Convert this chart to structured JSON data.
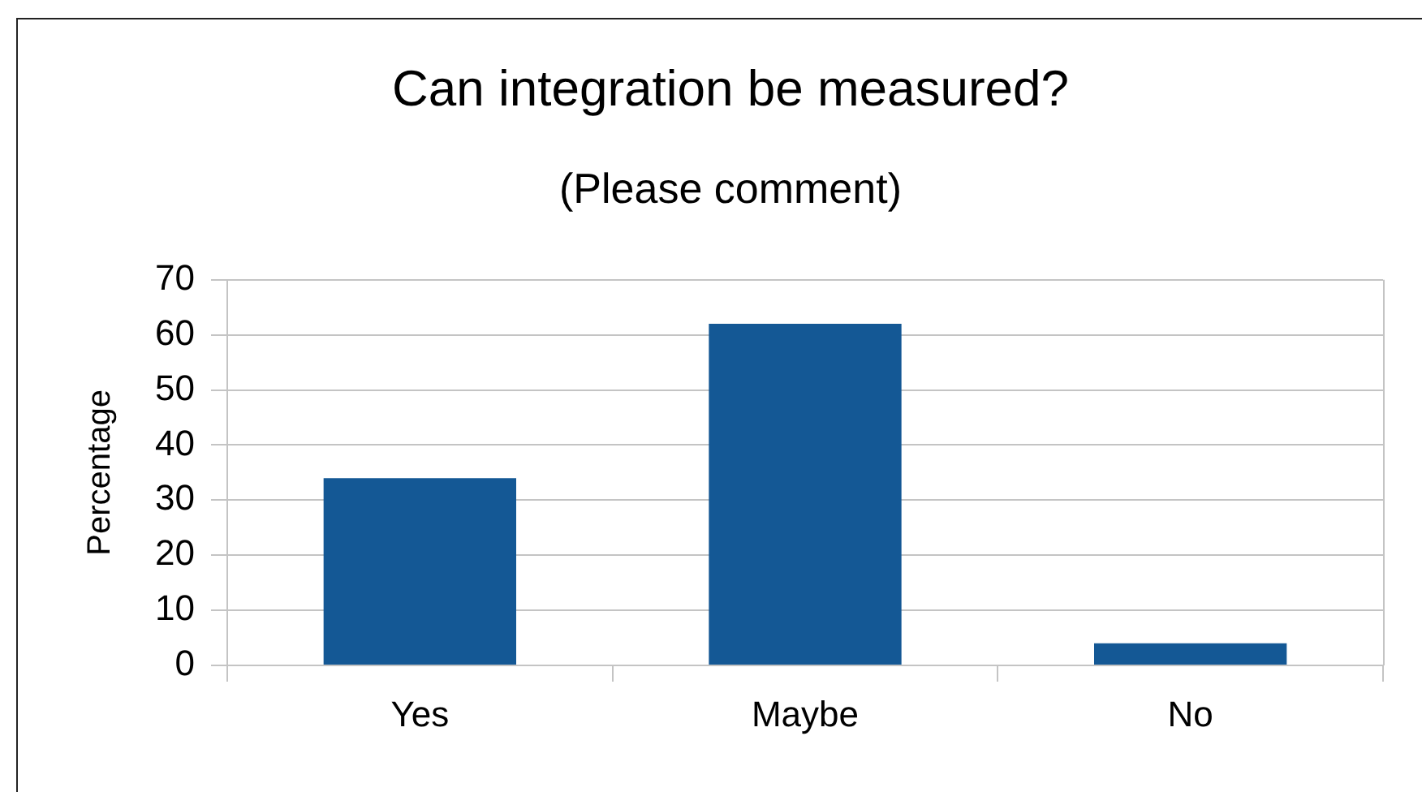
{
  "chart_data": {
    "type": "bar",
    "title": "Can integration be measured?",
    "subtitle": "(Please comment)",
    "ylabel": "Percentage",
    "categories": [
      "Yes",
      "Maybe",
      "No"
    ],
    "values": [
      34,
      62,
      4
    ],
    "color": "#145895",
    "ylim": [
      0,
      70
    ],
    "yticks": [
      0,
      10,
      20,
      30,
      40,
      50,
      60,
      70
    ],
    "grid": "y"
  }
}
